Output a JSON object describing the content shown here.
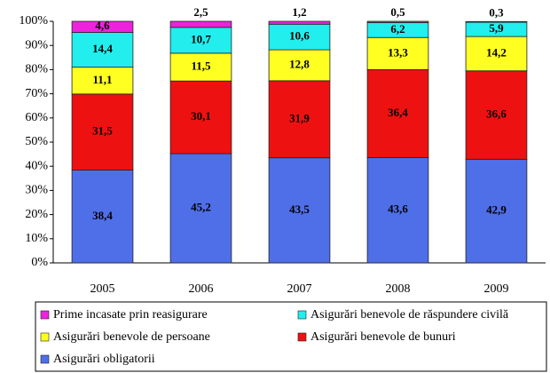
{
  "chart_data": {
    "type": "stacked_bar",
    "categories": [
      "2005",
      "2006",
      "2007",
      "2008",
      "2009"
    ],
    "series": [
      {
        "name": "Asigurări obligatorii",
        "color": "#4f6fe8",
        "values": [
          38.4,
          45.2,
          43.5,
          43.6,
          42.9
        ],
        "value_labels": [
          "38,4",
          "45,2",
          "43,5",
          "43,6",
          "42,9"
        ]
      },
      {
        "name": "Asigurări benevole de bunuri",
        "color": "#ee1111",
        "values": [
          31.5,
          30.1,
          31.9,
          36.4,
          36.6
        ],
        "value_labels": [
          "31,5",
          "30,1",
          "31,9",
          "36,4",
          "36,6"
        ]
      },
      {
        "name": "Asigurări benevole de persoane",
        "color": "#ffff22",
        "values": [
          11.1,
          11.5,
          12.8,
          13.3,
          14.2
        ],
        "value_labels": [
          "11,1",
          "11,5",
          "12,8",
          "13,3",
          "14,2"
        ]
      },
      {
        "name": "Asigurări benevole de răspundere civilă",
        "color": "#22eeee",
        "values": [
          14.4,
          10.7,
          10.6,
          6.2,
          5.9
        ],
        "value_labels": [
          "14,4",
          "10,7",
          "10,6",
          "6,2",
          "5,9"
        ]
      },
      {
        "name": "Prime incasate prin reasigurare",
        "color": "#ee22dd",
        "values": [
          4.6,
          2.5,
          1.2,
          0.5,
          0.3
        ],
        "value_labels": [
          "4,6",
          "2,5",
          "1,2",
          "0,5",
          "0,3"
        ]
      }
    ],
    "ylim": [
      0,
      100
    ],
    "yticks": [
      {
        "value": 0,
        "label": "0%"
      },
      {
        "value": 10,
        "label": "10%"
      },
      {
        "value": 20,
        "label": "20%"
      },
      {
        "value": 30,
        "label": "30%"
      },
      {
        "value": 40,
        "label": "40%"
      },
      {
        "value": 50,
        "label": "50%"
      },
      {
        "value": 60,
        "label": "60%"
      },
      {
        "value": 70,
        "label": "70%"
      },
      {
        "value": 80,
        "label": "80%"
      },
      {
        "value": 90,
        "label": "90%"
      },
      {
        "value": 100,
        "label": "100%"
      }
    ],
    "grid": false
  }
}
